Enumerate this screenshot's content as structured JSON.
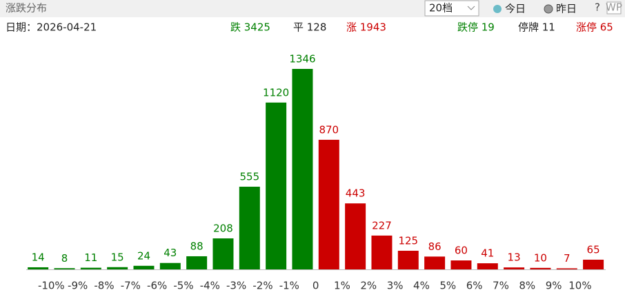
{
  "header": {
    "title": "涨跌分布",
    "select": "20档",
    "legend": [
      "今日",
      "昨日"
    ],
    "help": "?",
    "icon": "WP"
  },
  "info": {
    "date": "日期：2026-04-21",
    "down": "跌 3425",
    "flat": "平 128",
    "up": "涨 1943",
    "limit_down": "跌停 19",
    "suspended": "停牌 11",
    "limit_up": "涨停 65"
  },
  "chart_data": {
    "type": "bar",
    "values": [
      14,
      8,
      11,
      15,
      24,
      43,
      88,
      208,
      555,
      1120,
      1346,
      870,
      443,
      227,
      125,
      86,
      60,
      41,
      13,
      10,
      7,
      65
    ],
    "colors": [
      "#008000",
      "#008000",
      "#008000",
      "#008000",
      "#008000",
      "#008000",
      "#008000",
      "#008000",
      "#008000",
      "#008000",
      "#008000",
      "#cc0000",
      "#cc0000",
      "#cc0000",
      "#cc0000",
      "#cc0000",
      "#cc0000",
      "#cc0000",
      "#cc0000",
      "#cc0000",
      "#cc0000",
      "#cc0000"
    ],
    "bin_labels": [
      "-10%",
      "-9%",
      "-8%",
      "-7%",
      "-6%",
      "-5%",
      "-4%",
      "-3%",
      "-2%",
      "-1%",
      "0",
      "1%",
      "2%",
      "3%",
      "4%",
      "5%",
      "6%",
      "7%",
      "8%",
      "9%",
      "10%"
    ]
  }
}
